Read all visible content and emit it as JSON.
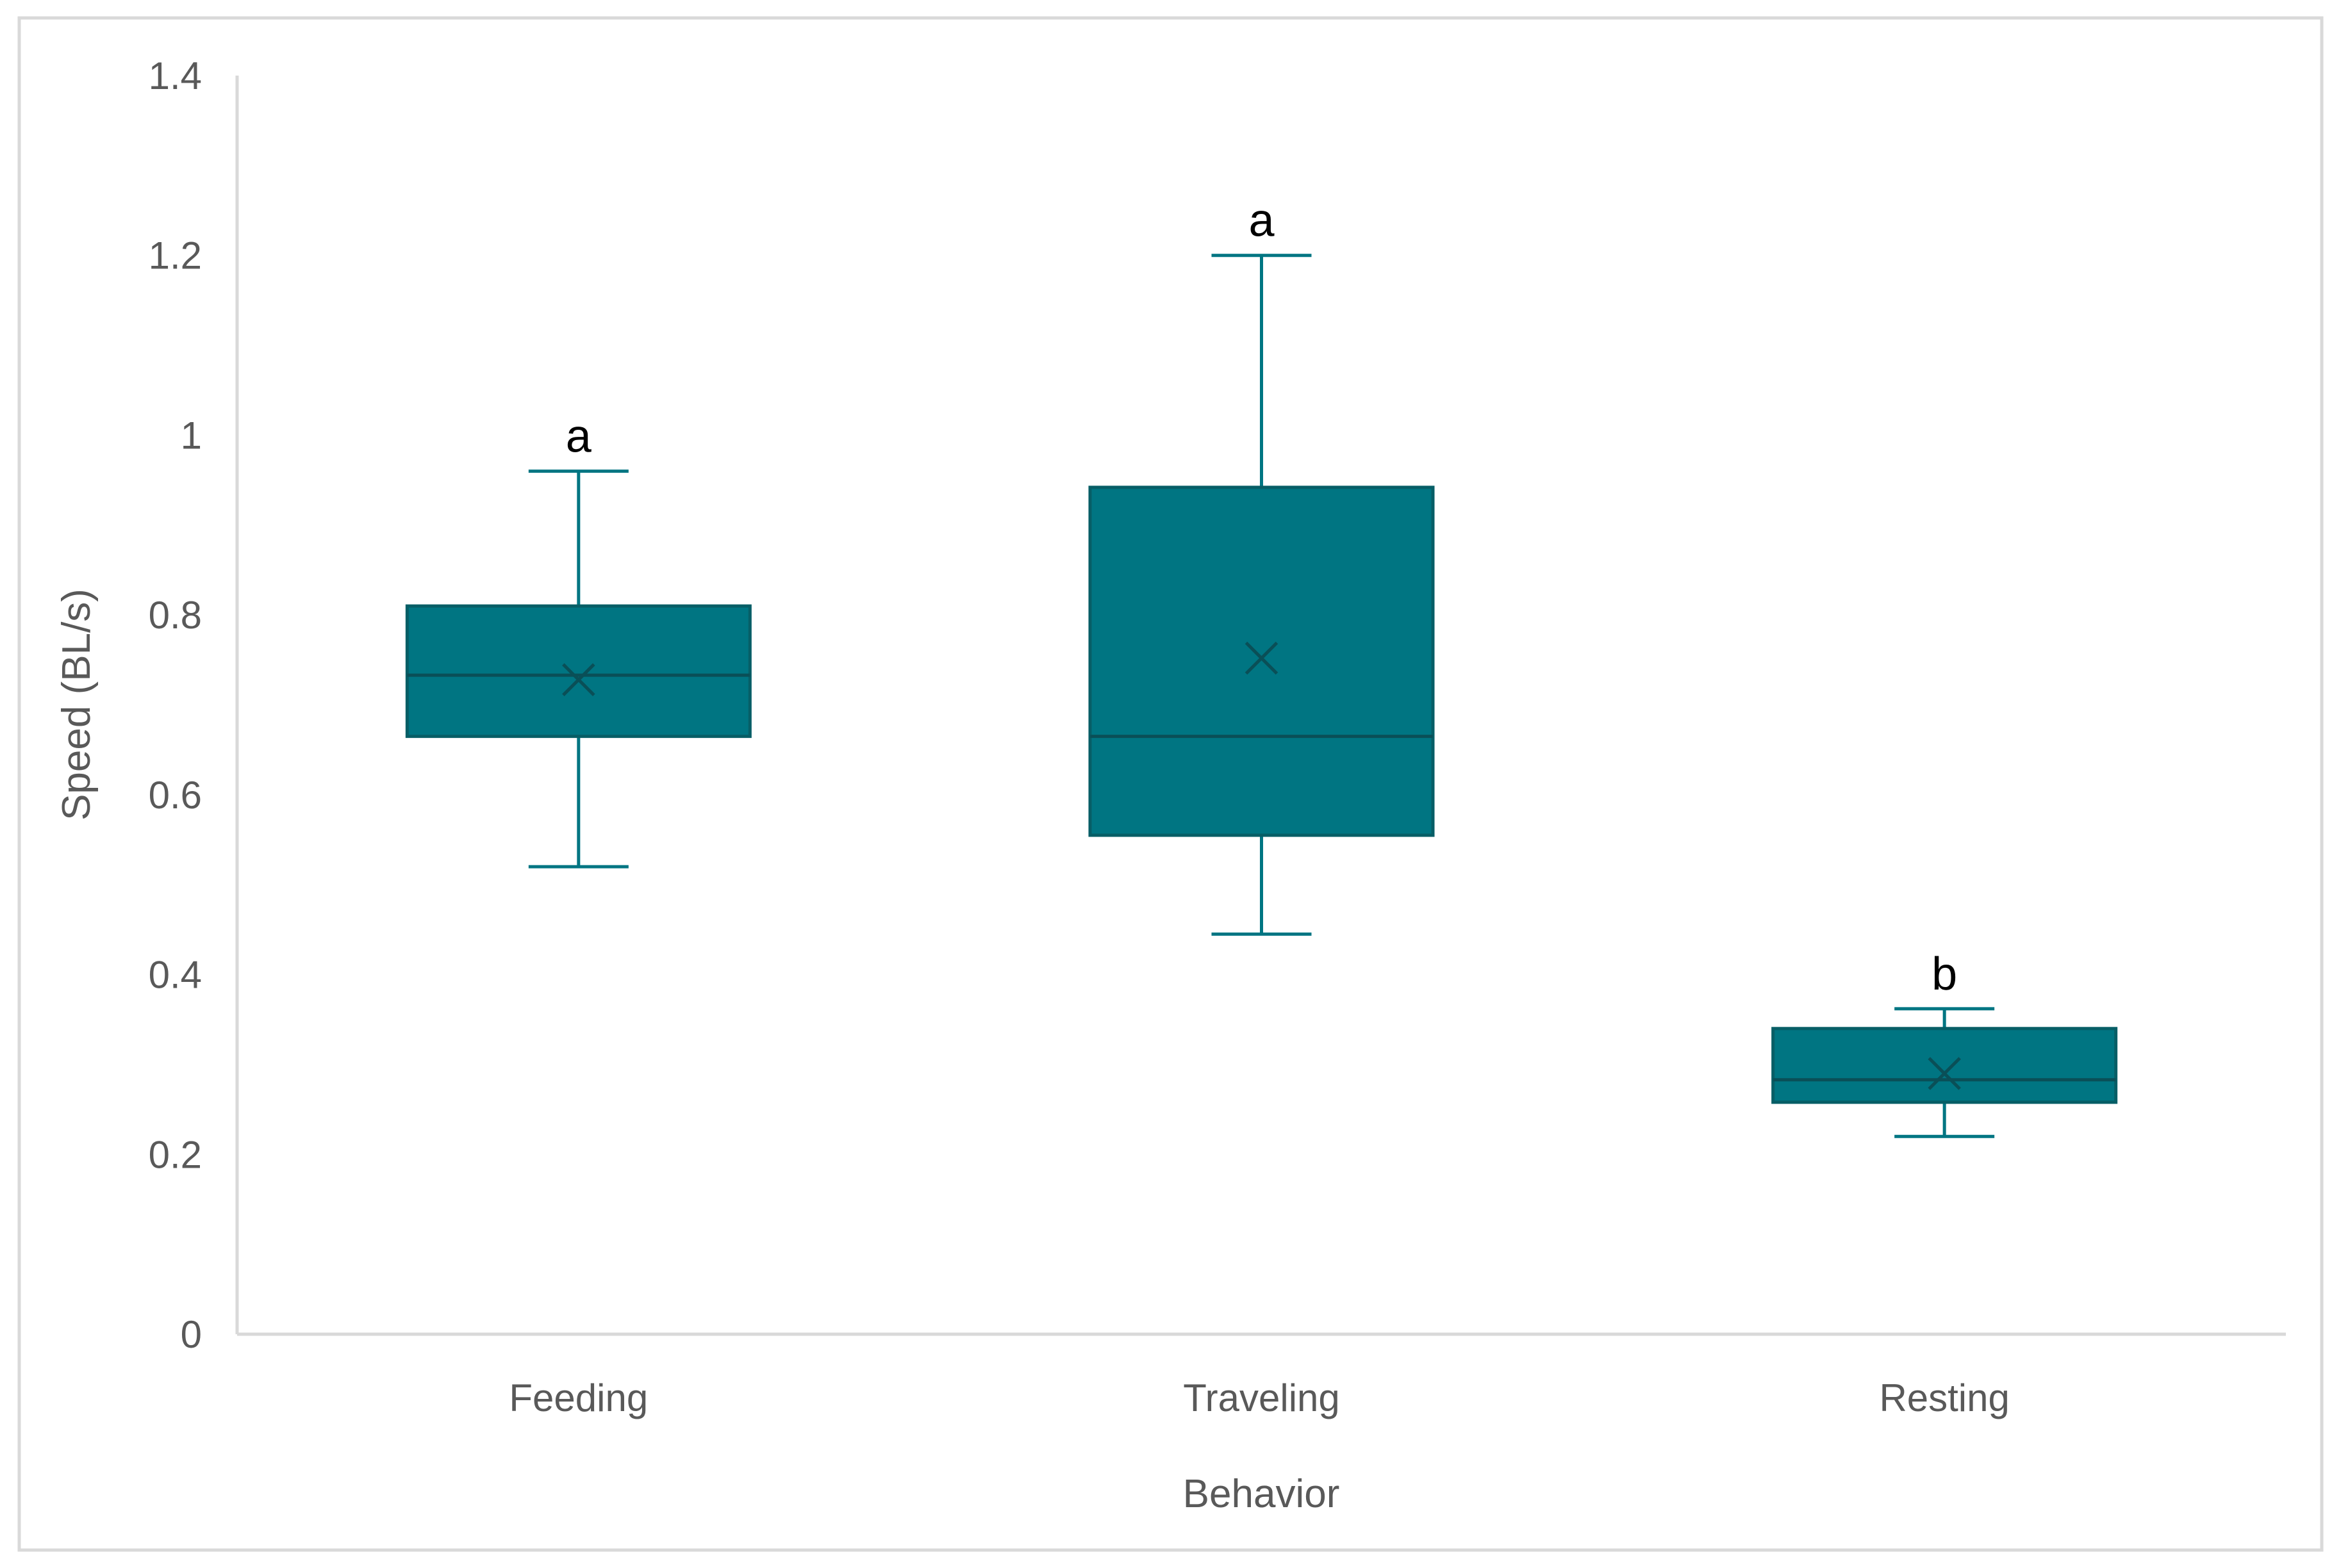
{
  "chart_data": {
    "type": "box",
    "title": "",
    "xlabel": "Behavior",
    "ylabel": "Speed (BL/s)",
    "ylim": [
      0,
      1.4
    ],
    "yticks": [
      "0",
      "0.2",
      "0.4",
      "0.6",
      "0.8",
      "1",
      "1.2",
      "1.4"
    ],
    "ytick_values": [
      0,
      0.2,
      0.4,
      0.6,
      0.8,
      1.0,
      1.2,
      1.4
    ],
    "grid": false,
    "legend": "none",
    "color": "#007582",
    "categories": [
      "Feeding",
      "Traveling",
      "Resting"
    ],
    "boxes": [
      {
        "category": "Feeding",
        "min": 0.52,
        "q1": 0.665,
        "median": 0.733,
        "q3": 0.81,
        "max": 0.96,
        "mean": 0.728,
        "sig": "a"
      },
      {
        "category": "Traveling",
        "min": 0.445,
        "q1": 0.555,
        "median": 0.665,
        "q3": 0.942,
        "max": 1.2,
        "mean": 0.752,
        "sig": "a"
      },
      {
        "category": "Resting",
        "min": 0.22,
        "q1": 0.258,
        "median": 0.283,
        "q3": 0.34,
        "max": 0.362,
        "mean": 0.29,
        "sig": "b"
      }
    ]
  }
}
